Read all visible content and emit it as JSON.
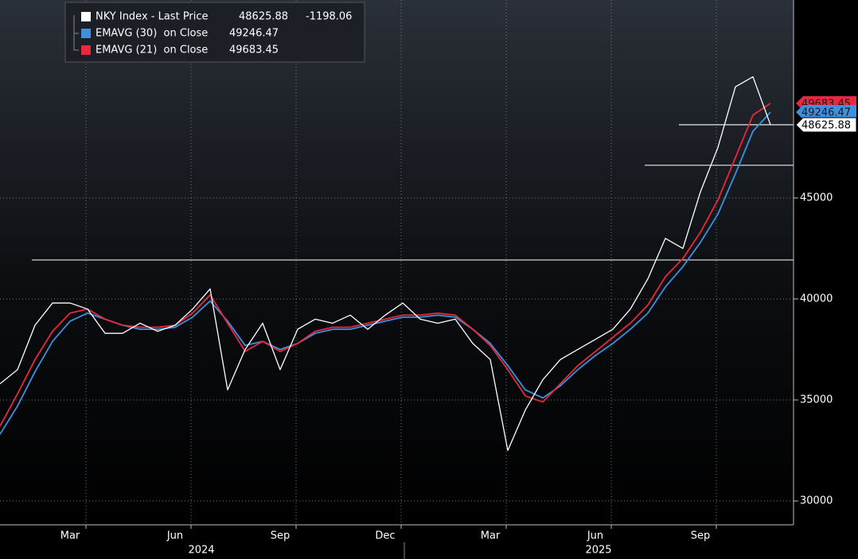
{
  "chart_data": {
    "type": "line",
    "categories": [
      null,
      null,
      null,
      null,
      "Mar",
      null,
      null,
      null,
      null,
      null,
      "Jun",
      null,
      null,
      null,
      null,
      null,
      "Sep",
      null,
      null,
      null,
      null,
      null,
      "Dec",
      null,
      null,
      null,
      null,
      null,
      "Mar",
      null,
      null,
      null,
      null,
      null,
      "Jun",
      null,
      null,
      null,
      null,
      null,
      "Sep",
      null,
      null,
      null,
      null
    ],
    "years": [
      "2024",
      "2025"
    ],
    "series": [
      {
        "name": "NKY Index - Last Price",
        "color": "#ffffff",
        "last": 48625.88,
        "change": -1198.06,
        "values": [
          35800,
          36500,
          38700,
          39800,
          39800,
          39500,
          38300,
          38300,
          38800,
          38400,
          38700,
          39500,
          40500,
          35500,
          37500,
          38800,
          36500,
          38500,
          39000,
          38800,
          39200,
          38500,
          39200,
          39800,
          39000,
          38800,
          39000,
          37800,
          37000,
          32500,
          34500,
          36000,
          37000,
          37500,
          38000,
          38500,
          39500,
          41000,
          43000,
          42500,
          45300,
          47500,
          50500,
          51000,
          48625.88
        ]
      },
      {
        "name": "EMAVG (30)  on Close",
        "color": "#3d8fe0",
        "last": 49246.47,
        "values": [
          33300,
          34700,
          36400,
          37900,
          38900,
          39300,
          39000,
          38700,
          38500,
          38500,
          38600,
          39100,
          39900,
          38900,
          37700,
          37900,
          37500,
          37800,
          38300,
          38500,
          38500,
          38700,
          38900,
          39100,
          39100,
          39200,
          39100,
          38500,
          37800,
          36700,
          35500,
          35100,
          35700,
          36500,
          37200,
          37800,
          38500,
          39300,
          40600,
          41600,
          42800,
          44200,
          46200,
          48300,
          49246.47
        ]
      },
      {
        "name": "EMAVG (21)  on Close",
        "color": "#e8283c",
        "last": 49683.45,
        "values": [
          33700,
          35300,
          37000,
          38400,
          39300,
          39500,
          39000,
          38700,
          38600,
          38600,
          38700,
          39300,
          40200,
          38800,
          37400,
          37900,
          37400,
          37800,
          38400,
          38600,
          38600,
          38800,
          39000,
          39200,
          39200,
          39300,
          39200,
          38500,
          37700,
          36500,
          35200,
          34900,
          35800,
          36700,
          37400,
          38100,
          38800,
          39700,
          41100,
          42000,
          43300,
          44900,
          47000,
          49100,
          49683.45
        ]
      }
    ],
    "hlines": [
      41930,
      46620
    ],
    "ylim": [
      28820,
      54800
    ],
    "yticks": [
      30000,
      35000,
      40000,
      45000
    ],
    "grid": true
  }
}
